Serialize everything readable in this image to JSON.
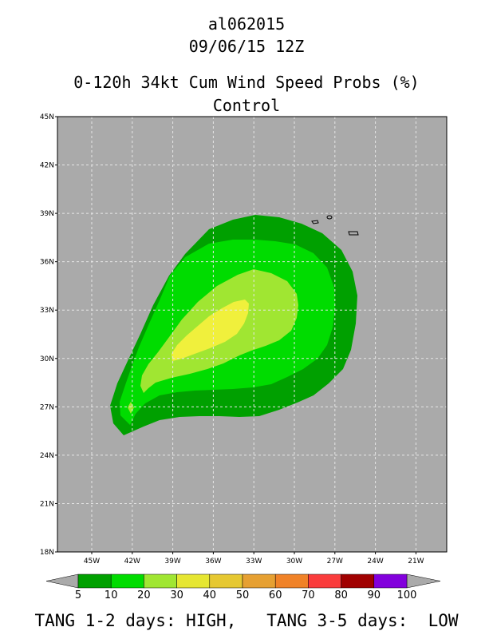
{
  "header": {
    "storm_id": "al062015",
    "datetime": "09/06/15 12Z",
    "product": "0-120h 34kt Cum Wind Speed Probs (%)",
    "model": "Control"
  },
  "map": {
    "lat_labels": [
      "45N",
      "42N",
      "39N",
      "36N",
      "33N",
      "30N",
      "27N",
      "24N",
      "21N",
      "18N"
    ],
    "lon_labels": [
      "45W",
      "42W",
      "39W",
      "36W",
      "33W",
      "30W",
      "27W",
      "24W",
      "21W"
    ],
    "background_color": "#aaaaaa"
  },
  "colorbar": {
    "labels": [
      "5",
      "10",
      "20",
      "30",
      "40",
      "50",
      "60",
      "70",
      "80",
      "90",
      "100"
    ],
    "colors": [
      "#00a000",
      "#00dc00",
      "#a0e632",
      "#e6e632",
      "#e6c832",
      "#e6a032",
      "#f08228",
      "#fa3c3c",
      "#a00000",
      "#8200dc"
    ]
  },
  "footer": {
    "text": "TANG 1-2 days: HIGH,   TANG 3-5 days:  LOW"
  }
}
